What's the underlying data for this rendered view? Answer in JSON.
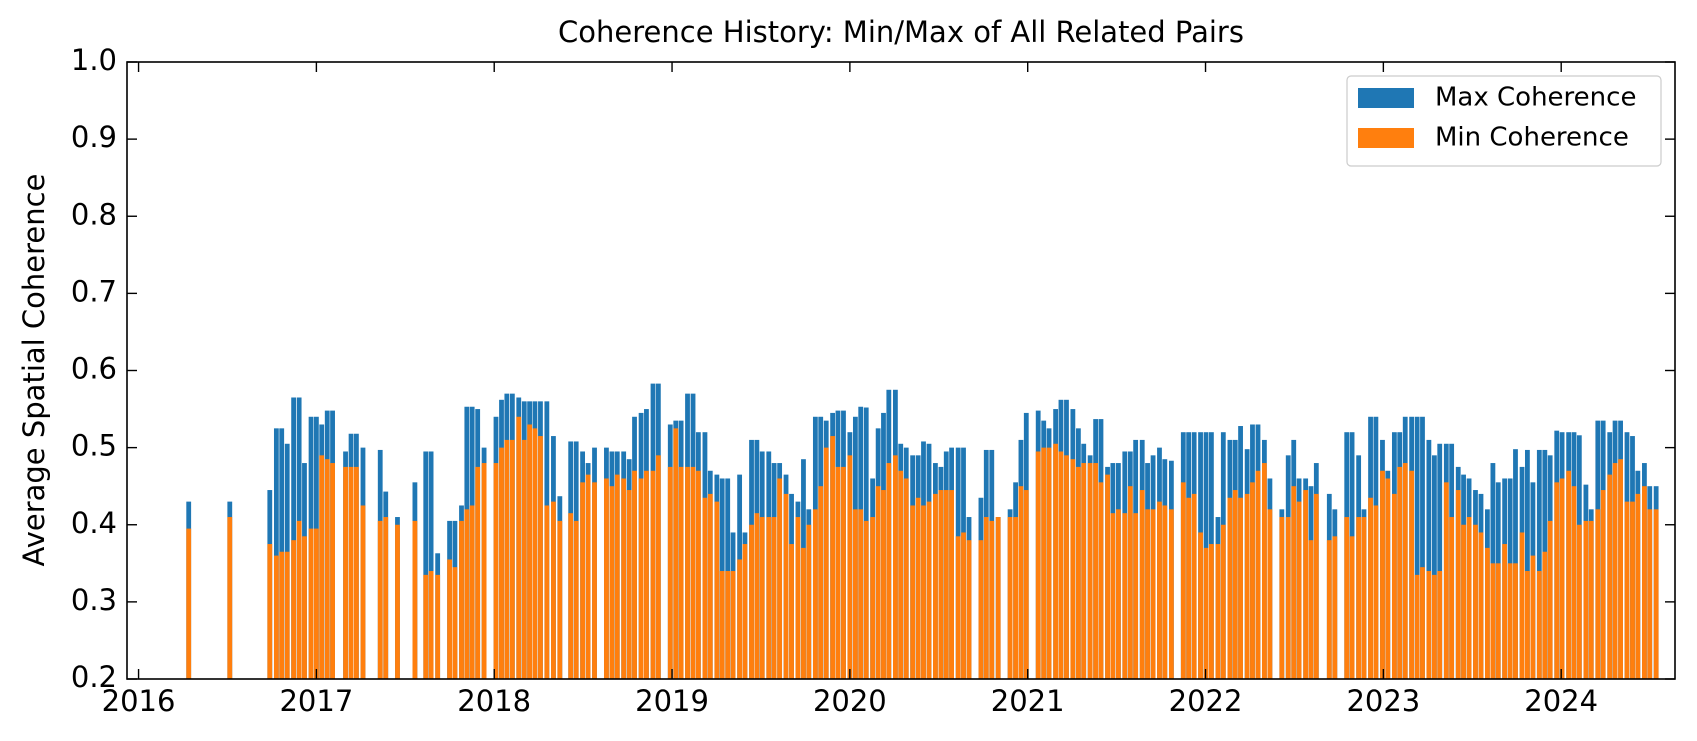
{
  "chart_data": {
    "type": "bar",
    "title": "Coherence History: Min/Max of All Related Pairs",
    "y_label": "Average Spatial Coherence",
    "xlim": [
      2015.935,
      2024.64
    ],
    "xticks": [
      2016,
      2017,
      2018,
      2019,
      2020,
      2021,
      2022,
      2023,
      2024
    ],
    "ylim": [
      0.2,
      1.0
    ],
    "yticks": [
      {
        "value": 0.2,
        "label": "0.2"
      },
      0.3,
      0.4,
      0.5,
      0.6,
      0.7,
      0.8,
      0.9,
      {
        "value": 1.0,
        "label": "1.0"
      }
    ],
    "legend": "upper right",
    "overlay": true,
    "x": [
      2016.282,
      2016.513,
      2016.738,
      2016.775,
      2016.805,
      2016.836,
      2016.872,
      2016.903,
      2016.933,
      2016.97,
      2017.0,
      2017.03,
      2017.061,
      2017.091,
      2017.164,
      2017.195,
      2017.225,
      2017.262,
      2017.359,
      2017.39,
      2017.456,
      2017.554,
      2017.615,
      2017.645,
      2017.682,
      2017.749,
      2017.779,
      2017.816,
      2017.846,
      2017.876,
      2017.907,
      2017.943,
      2018.01,
      2018.041,
      2018.071,
      2018.102,
      2018.138,
      2018.169,
      2018.199,
      2018.229,
      2018.26,
      2018.296,
      2018.333,
      2018.369,
      2018.43,
      2018.461,
      2018.497,
      2018.528,
      2018.564,
      2018.631,
      2018.662,
      2018.692,
      2018.728,
      2018.759,
      2018.789,
      2018.826,
      2018.856,
      2018.893,
      2018.923,
      2018.99,
      2019.021,
      2019.051,
      2019.087,
      2019.118,
      2019.148,
      2019.185,
      2019.215,
      2019.252,
      2019.282,
      2019.313,
      2019.343,
      2019.38,
      2019.41,
      2019.447,
      2019.477,
      2019.507,
      2019.544,
      2019.574,
      2019.605,
      2019.641,
      2019.672,
      2019.708,
      2019.739,
      2019.769,
      2019.806,
      2019.836,
      2019.867,
      2019.903,
      2019.933,
      2019.964,
      2020.0,
      2020.031,
      2020.061,
      2020.092,
      2020.128,
      2020.159,
      2020.189,
      2020.219,
      2020.256,
      2020.286,
      2020.317,
      2020.353,
      2020.384,
      2020.414,
      2020.445,
      2020.481,
      2020.512,
      2020.542,
      2020.572,
      2020.609,
      2020.639,
      2020.67,
      2020.737,
      2020.767,
      2020.798,
      2020.834,
      2020.901,
      2020.932,
      2020.962,
      2020.992,
      2021.059,
      2021.09,
      2021.12,
      2021.157,
      2021.187,
      2021.218,
      2021.254,
      2021.285,
      2021.315,
      2021.351,
      2021.382,
      2021.412,
      2021.449,
      2021.479,
      2021.51,
      2021.546,
      2021.577,
      2021.607,
      2021.644,
      2021.674,
      2021.705,
      2021.741,
      2021.771,
      2021.808,
      2021.875,
      2021.905,
      2021.936,
      2021.972,
      2022.003,
      2022.033,
      2022.07,
      2022.1,
      2022.137,
      2022.167,
      2022.197,
      2022.234,
      2022.264,
      2022.295,
      2022.331,
      2022.362,
      2022.429,
      2022.465,
      2022.496,
      2022.526,
      2022.563,
      2022.593,
      2022.623,
      2022.696,
      2022.727,
      2022.794,
      2022.824,
      2022.861,
      2022.891,
      2022.928,
      2022.958,
      2022.995,
      2023.025,
      2023.062,
      2023.092,
      2023.123,
      2023.159,
      2023.19,
      2023.22,
      2023.256,
      2023.287,
      2023.317,
      2023.354,
      2023.384,
      2023.421,
      2023.451,
      2023.482,
      2023.518,
      2023.549,
      2023.585,
      2023.616,
      2023.646,
      2023.682,
      2023.713,
      2023.743,
      2023.78,
      2023.81,
      2023.841,
      2023.877,
      2023.908,
      2023.938,
      2023.975,
      2024.005,
      2024.042,
      2024.072,
      2024.102,
      2024.139,
      2024.169,
      2024.206,
      2024.236,
      2024.273,
      2024.303,
      2024.334,
      2024.37,
      2024.401,
      2024.431,
      2024.468,
      2024.498,
      2024.534
    ],
    "series": [
      {
        "name": "Max Coherence",
        "color": "#1f77b4",
        "values": [
          0.43,
          0.43,
          0.445,
          0.525,
          0.525,
          0.505,
          0.565,
          0.565,
          0.48,
          0.54,
          0.54,
          0.53,
          0.548,
          0.548,
          0.495,
          0.518,
          0.518,
          0.5,
          0.497,
          0.443,
          0.41,
          0.455,
          0.495,
          0.495,
          0.363,
          0.405,
          0.405,
          0.425,
          0.553,
          0.553,
          0.55,
          0.5,
          0.54,
          0.562,
          0.57,
          0.57,
          0.565,
          0.56,
          0.56,
          0.56,
          0.56,
          0.56,
          0.515,
          0.437,
          0.508,
          0.508,
          0.495,
          0.48,
          0.5,
          0.5,
          0.495,
          0.495,
          0.495,
          0.485,
          0.54,
          0.545,
          0.55,
          0.583,
          0.583,
          0.53,
          0.535,
          0.535,
          0.57,
          0.57,
          0.52,
          0.52,
          0.47,
          0.465,
          0.46,
          0.46,
          0.39,
          0.465,
          0.39,
          0.51,
          0.51,
          0.495,
          0.495,
          0.48,
          0.48,
          0.465,
          0.44,
          0.43,
          0.485,
          0.42,
          0.54,
          0.54,
          0.535,
          0.545,
          0.548,
          0.548,
          0.52,
          0.54,
          0.553,
          0.552,
          0.46,
          0.525,
          0.545,
          0.575,
          0.575,
          0.505,
          0.5,
          0.49,
          0.49,
          0.508,
          0.505,
          0.48,
          0.475,
          0.495,
          0.5,
          0.5,
          0.5,
          0.41,
          0.435,
          0.497,
          0.497,
          0.41,
          0.42,
          0.455,
          0.51,
          0.545,
          0.548,
          0.535,
          0.525,
          0.55,
          0.562,
          0.562,
          0.55,
          0.525,
          0.505,
          0.49,
          0.537,
          0.537,
          0.475,
          0.48,
          0.48,
          0.495,
          0.495,
          0.51,
          0.51,
          0.48,
          0.49,
          0.5,
          0.485,
          0.483,
          0.52,
          0.52,
          0.52,
          0.52,
          0.52,
          0.52,
          0.41,
          0.52,
          0.51,
          0.51,
          0.528,
          0.498,
          0.53,
          0.53,
          0.51,
          0.46,
          0.42,
          0.49,
          0.51,
          0.46,
          0.46,
          0.45,
          0.48,
          0.44,
          0.42,
          0.52,
          0.52,
          0.49,
          0.42,
          0.54,
          0.54,
          0.51,
          0.47,
          0.52,
          0.52,
          0.54,
          0.54,
          0.54,
          0.54,
          0.51,
          0.49,
          0.505,
          0.505,
          0.505,
          0.475,
          0.465,
          0.46,
          0.445,
          0.44,
          0.42,
          0.48,
          0.455,
          0.46,
          0.46,
          0.498,
          0.475,
          0.497,
          0.455,
          0.497,
          0.497,
          0.49,
          0.522,
          0.52,
          0.52,
          0.52,
          0.516,
          0.452,
          0.42,
          0.535,
          0.535,
          0.52,
          0.535,
          0.535,
          0.52,
          0.515,
          0.47,
          0.48,
          0.45,
          0.45
        ]
      },
      {
        "name": "Min Coherence",
        "color": "#ff7f0e",
        "values": [
          0.395,
          0.41,
          0.375,
          0.36,
          0.365,
          0.365,
          0.38,
          0.405,
          0.385,
          0.395,
          0.395,
          0.49,
          0.485,
          0.48,
          0.475,
          0.475,
          0.475,
          0.425,
          0.405,
          0.41,
          0.4,
          0.405,
          0.335,
          0.34,
          0.335,
          0.355,
          0.345,
          0.405,
          0.42,
          0.425,
          0.475,
          0.48,
          0.48,
          0.5,
          0.51,
          0.51,
          0.54,
          0.51,
          0.53,
          0.525,
          0.515,
          0.425,
          0.43,
          0.405,
          0.415,
          0.405,
          0.455,
          0.465,
          0.455,
          0.46,
          0.45,
          0.465,
          0.46,
          0.445,
          0.47,
          0.46,
          0.47,
          0.47,
          0.49,
          0.475,
          0.525,
          0.475,
          0.475,
          0.475,
          0.47,
          0.435,
          0.44,
          0.43,
          0.34,
          0.34,
          0.34,
          0.355,
          0.375,
          0.4,
          0.415,
          0.41,
          0.41,
          0.41,
          0.46,
          0.44,
          0.375,
          0.41,
          0.37,
          0.4,
          0.42,
          0.45,
          0.5,
          0.515,
          0.475,
          0.475,
          0.49,
          0.42,
          0.42,
          0.405,
          0.41,
          0.45,
          0.445,
          0.48,
          0.49,
          0.47,
          0.46,
          0.425,
          0.435,
          0.425,
          0.43,
          0.44,
          0.445,
          0.445,
          0.445,
          0.385,
          0.39,
          0.38,
          0.38,
          0.41,
          0.405,
          0.41,
          0.41,
          0.41,
          0.45,
          0.445,
          0.495,
          0.5,
          0.5,
          0.505,
          0.495,
          0.49,
          0.485,
          0.475,
          0.48,
          0.48,
          0.48,
          0.455,
          0.465,
          0.415,
          0.42,
          0.415,
          0.45,
          0.415,
          0.445,
          0.42,
          0.42,
          0.43,
          0.425,
          0.42,
          0.455,
          0.435,
          0.44,
          0.39,
          0.37,
          0.375,
          0.375,
          0.4,
          0.435,
          0.445,
          0.435,
          0.44,
          0.455,
          0.47,
          0.48,
          0.42,
          0.41,
          0.41,
          0.45,
          0.43,
          0.445,
          0.38,
          0.44,
          0.38,
          0.385,
          0.41,
          0.385,
          0.41,
          0.41,
          0.435,
          0.425,
          0.47,
          0.46,
          0.44,
          0.475,
          0.48,
          0.47,
          0.335,
          0.345,
          0.34,
          0.335,
          0.34,
          0.455,
          0.41,
          0.445,
          0.4,
          0.41,
          0.4,
          0.39,
          0.37,
          0.35,
          0.35,
          0.375,
          0.35,
          0.35,
          0.39,
          0.34,
          0.36,
          0.34,
          0.365,
          0.405,
          0.455,
          0.46,
          0.47,
          0.45,
          0.4,
          0.405,
          0.405,
          0.42,
          0.445,
          0.465,
          0.48,
          0.485,
          0.43,
          0.43,
          0.44,
          0.45,
          0.42,
          0.42
        ]
      }
    ]
  }
}
